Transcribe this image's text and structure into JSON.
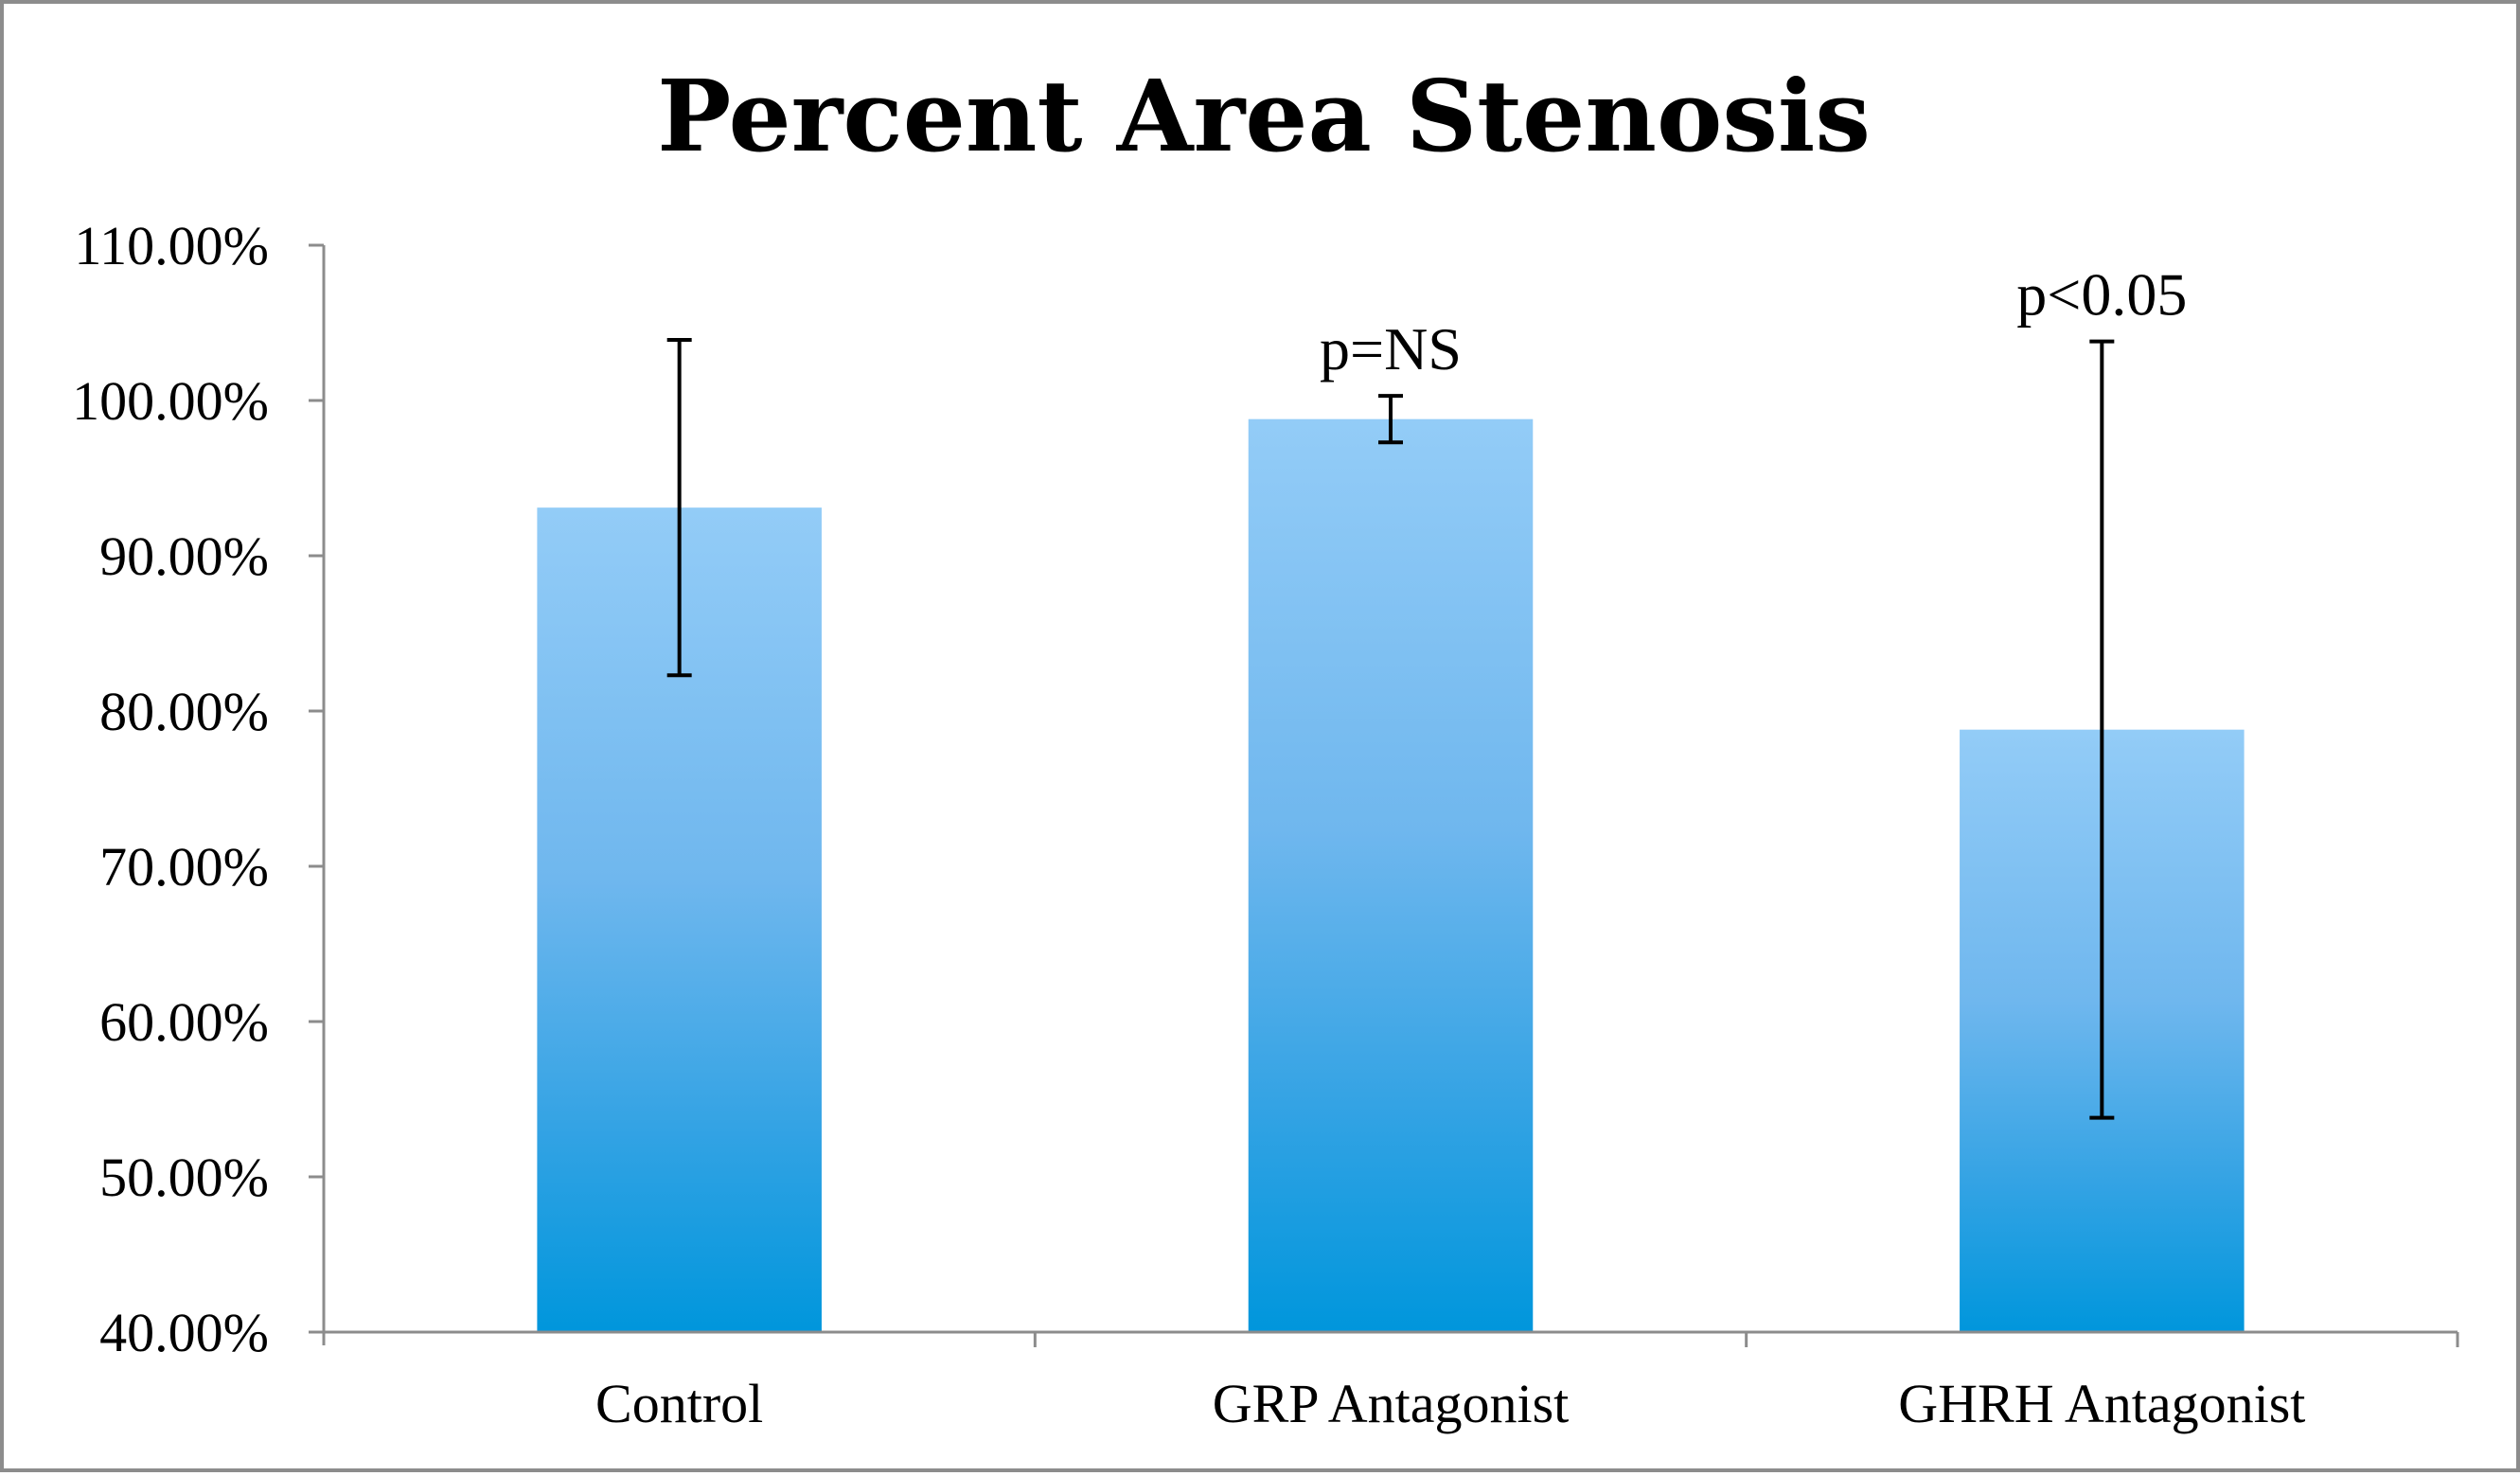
{
  "chart_data": {
    "type": "bar",
    "title": "Percent Area Stenosis",
    "xlabel": "",
    "ylabel": "",
    "categories": [
      "Control",
      "GRP Antagonist",
      "GHRH Antagonist"
    ],
    "values": [
      0.931,
      0.988,
      0.788
    ],
    "error": [
      0.108,
      0.015,
      0.25
    ],
    "annotations": [
      "",
      "p=NS",
      "p<0.05"
    ],
    "ylim": [
      0.4,
      1.1
    ],
    "yticks": [
      0.4,
      0.5,
      0.6,
      0.7,
      0.8,
      0.9,
      1.0,
      1.1
    ],
    "ytick_labels": [
      "40.00%",
      "50.00%",
      "60.00%",
      "70.00%",
      "80.00%",
      "90.00%",
      "100.00%",
      "110.00%"
    ],
    "grid": false,
    "legend": "none",
    "colors": {
      "bar_top": "#93ccf7",
      "bar_bottom": "#0096dc",
      "axis": "#8c8c8c",
      "error_bar": "#000000"
    }
  }
}
